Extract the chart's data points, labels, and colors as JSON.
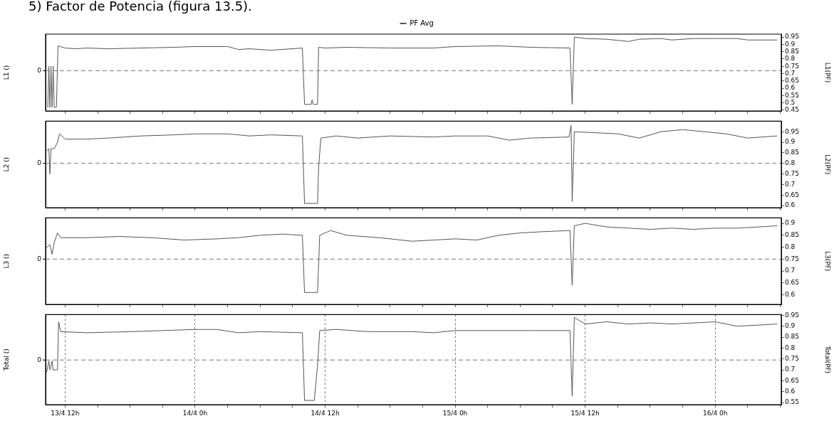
{
  "chart_data": [
    {
      "type": "line",
      "title": "5) Factor de Potencia (figura 13.5).",
      "ylabel": "L1 ()",
      "y2label": "L1(PF)",
      "ref_lines": [
        {
          "axis": "y2",
          "value": 0.72,
          "line_style": "dashed"
        }
      ],
      "annotations": [
        "0"
      ],
      "legend": "top",
      "grid": "x",
      "tick_labels": "y",
      "marker": "none",
      "line_style": "solid",
      "xlim": [
        "--04-13T10:12",
        "--04-16T06:06"
      ],
      "xticks": [
        {
          "value": "--04-13T12:00",
          "label": null
        },
        {
          "value": "--04-13T15:00",
          "label": null
        },
        {
          "value": "--04-13T18:00",
          "label": null
        },
        {
          "value": "--04-13T21:00",
          "label": null
        },
        {
          "value": "--04-14T00:00",
          "label": null
        },
        {
          "value": "--04-14T03:00",
          "label": null
        },
        {
          "value": "--04-14T06:00",
          "label": null
        },
        {
          "value": "--04-14T09:00",
          "label": null
        },
        {
          "value": "--04-14T12:00",
          "label": null
        },
        {
          "value": "--04-14T15:00",
          "label": null
        },
        {
          "value": "--04-14T18:00",
          "label": null
        },
        {
          "value": "--04-14T21:00",
          "label": null
        },
        {
          "value": "--04-15T00:00",
          "label": null
        },
        {
          "value": "--04-15T03:00",
          "label": null
        },
        {
          "value": "--04-15T06:00",
          "label": null
        },
        {
          "value": "--04-15T09:00",
          "label": null
        },
        {
          "value": "--04-15T12:00",
          "label": null
        },
        {
          "value": "--04-15T15:00",
          "label": null
        },
        {
          "value": "--04-15T18:00",
          "label": null
        },
        {
          "value": "--04-15T21:00",
          "label": null
        },
        {
          "value": "--04-16T00:00",
          "label": null
        },
        {
          "value": "--04-16T03:00",
          "label": null
        },
        {
          "value": "--04-16T06:00",
          "label": null
        }
      ],
      "y2lim": [
        0.445,
        0.97
      ],
      "y2ticks": [
        0.45,
        0.5,
        0.55,
        0.6,
        0.65,
        0.7,
        0.75,
        0.8,
        0.85,
        0.9,
        0.95
      ],
      "series": [
        {
          "name": "PF Avg",
          "color": "#555555",
          "axis": "y2",
          "x": [
            "--04-13T10:24",
            "--04-13T10:30",
            "--04-13T10:36",
            "--04-13T10:42",
            "--04-13T10:48",
            "--04-13T10:54",
            "--04-13T11:00",
            "--04-13T11:12",
            "--04-13T11:21",
            "--04-13T12:00",
            "--04-13T13:00",
            "--04-13T14:00",
            "--04-13T16:00",
            "--04-13T19:00",
            "--04-13T22:00",
            "--04-14T00:00",
            "--04-14T03:00",
            "--04-14T04:00",
            "--04-14T05:00",
            "--04-14T07:00",
            "--04-14T09:54",
            "--04-14T10:06",
            "--04-14T10:42",
            "--04-14T10:48",
            "--04-14T10:54",
            "--04-14T11:18",
            "--04-14T11:24",
            "--04-14T12:00",
            "--04-14T14:00",
            "--04-14T18:00",
            "--04-14T22:00",
            "--04-15T00:00",
            "--04-15T04:00",
            "--04-15T07:00",
            "--04-15T10:36",
            "--04-15T10:48",
            "--04-15T11:00",
            "--04-15T12:00",
            "--04-15T14:00",
            "--04-15T16:00",
            "--04-15T17:00",
            "--04-15T19:00",
            "--04-15T20:00",
            "--04-15T22:00",
            "--04-16T00:00",
            "--04-16T02:00",
            "--04-16T03:00",
            "--04-16T05:42"
          ],
          "values": [
            0.47,
            0.75,
            0.47,
            0.75,
            0.47,
            0.75,
            0.47,
            0.47,
            0.89,
            0.875,
            0.87,
            0.875,
            0.87,
            0.875,
            0.88,
            0.885,
            0.885,
            0.865,
            0.87,
            0.86,
            0.875,
            0.49,
            0.49,
            0.52,
            0.49,
            0.49,
            0.88,
            0.875,
            0.88,
            0.875,
            0.875,
            0.885,
            0.89,
            0.88,
            0.875,
            0.49,
            0.95,
            0.94,
            0.935,
            0.92,
            0.935,
            0.94,
            0.93,
            0.94,
            0.94,
            0.94,
            0.93,
            0.93
          ]
        }
      ]
    },
    {
      "type": "line",
      "ylabel": "L2 ()",
      "y2label": "L2(PF)",
      "ref_lines": [
        {
          "axis": "y2",
          "value": 0.8,
          "line_style": "dashed"
        }
      ],
      "annotations": [
        "0"
      ],
      "grid": "x",
      "tick_labels": "y",
      "marker": "none",
      "line_style": "solid",
      "xlim": [
        "--04-13T10:12",
        "--04-16T06:06"
      ],
      "xticks": [
        {
          "value": "--04-13T12:00",
          "label": null
        },
        {
          "value": "--04-13T15:00",
          "label": null
        },
        {
          "value": "--04-13T18:00",
          "label": null
        },
        {
          "value": "--04-13T21:00",
          "label": null
        },
        {
          "value": "--04-14T00:00",
          "label": null
        },
        {
          "value": "--04-14T03:00",
          "label": null
        },
        {
          "value": "--04-14T06:00",
          "label": null
        },
        {
          "value": "--04-14T09:00",
          "label": null
        },
        {
          "value": "--04-14T12:00",
          "label": null
        },
        {
          "value": "--04-14T15:00",
          "label": null
        },
        {
          "value": "--04-14T18:00",
          "label": null
        },
        {
          "value": "--04-14T21:00",
          "label": null
        },
        {
          "value": "--04-15T00:00",
          "label": null
        },
        {
          "value": "--04-15T03:00",
          "label": null
        },
        {
          "value": "--04-15T06:00",
          "label": null
        },
        {
          "value": "--04-15T09:00",
          "label": null
        },
        {
          "value": "--04-15T12:00",
          "label": null
        },
        {
          "value": "--04-15T15:00",
          "label": null
        },
        {
          "value": "--04-15T18:00",
          "label": null
        },
        {
          "value": "--04-15T21:00",
          "label": null
        },
        {
          "value": "--04-16T00:00",
          "label": null
        },
        {
          "value": "--04-16T03:00",
          "label": null
        },
        {
          "value": "--04-16T06:00",
          "label": null
        }
      ],
      "y2lim": [
        0.59,
        1.0
      ],
      "y2ticks": [
        0.6,
        0.65,
        0.7,
        0.75,
        0.8,
        0.85,
        0.9,
        0.95
      ],
      "series": [
        {
          "color": "#555555",
          "axis": "y2",
          "x": [
            "--04-13T10:18",
            "--04-13T10:30",
            "--04-13T10:36",
            "--04-13T10:42",
            "--04-13T11:00",
            "--04-13T11:18",
            "--04-13T11:30",
            "--04-13T12:00",
            "--04-13T14:00",
            "--04-13T16:00",
            "--04-13T19:00",
            "--04-13T22:00",
            "--04-14T00:00",
            "--04-14T03:00",
            "--04-14T05:00",
            "--04-14T07:00",
            "--04-14T09:54",
            "--04-14T10:06",
            "--04-14T11:18",
            "--04-14T11:24",
            "--04-14T11:36",
            "--04-14T13:00",
            "--04-14T15:00",
            "--04-14T18:00",
            "--04-14T22:00",
            "--04-15T00:00",
            "--04-15T03:00",
            "--04-15T05:00",
            "--04-15T07:00",
            "--04-15T10:30",
            "--04-15T10:42",
            "--04-15T10:48",
            "--04-15T11:00",
            "--04-15T13:00",
            "--04-15T15:00",
            "--04-15T17:00",
            "--04-15T19:00",
            "--04-15T21:00",
            "--04-15T23:00",
            "--04-16T01:00",
            "--04-16T03:00",
            "--04-16T05:42"
          ],
          "values": [
            0.86,
            0.87,
            0.75,
            0.87,
            0.87,
            0.9,
            0.94,
            0.915,
            0.915,
            0.92,
            0.93,
            0.935,
            0.94,
            0.94,
            0.93,
            0.935,
            0.93,
            0.61,
            0.61,
            0.78,
            0.92,
            0.93,
            0.92,
            0.93,
            0.925,
            0.93,
            0.93,
            0.91,
            0.92,
            0.925,
            0.98,
            0.62,
            0.95,
            0.945,
            0.94,
            0.92,
            0.95,
            0.96,
            0.95,
            0.94,
            0.92,
            0.93
          ]
        }
      ]
    },
    {
      "type": "line",
      "ylabel": "L3 ()",
      "y2label": "L3(PF)",
      "ref_lines": [
        {
          "axis": "y2",
          "value": 0.75,
          "line_style": "dashed"
        }
      ],
      "annotations": [
        "0"
      ],
      "grid": "x",
      "tick_labels": "y",
      "marker": "none",
      "line_style": "solid",
      "xlim": [
        "--04-13T10:12",
        "--04-16T06:06"
      ],
      "xticks": [
        {
          "value": "--04-13T12:00",
          "label": null
        },
        {
          "value": "--04-13T15:00",
          "label": null
        },
        {
          "value": "--04-13T18:00",
          "label": null
        },
        {
          "value": "--04-13T21:00",
          "label": null
        },
        {
          "value": "--04-14T00:00",
          "label": null
        },
        {
          "value": "--04-14T03:00",
          "label": null
        },
        {
          "value": "--04-14T06:00",
          "label": null
        },
        {
          "value": "--04-14T09:00",
          "label": null
        },
        {
          "value": "--04-14T12:00",
          "label": null
        },
        {
          "value": "--04-14T15:00",
          "label": null
        },
        {
          "value": "--04-14T18:00",
          "label": null
        },
        {
          "value": "--04-14T21:00",
          "label": null
        },
        {
          "value": "--04-15T00:00",
          "label": null
        },
        {
          "value": "--04-15T03:00",
          "label": null
        },
        {
          "value": "--04-15T06:00",
          "label": null
        },
        {
          "value": "--04-15T09:00",
          "label": null
        },
        {
          "value": "--04-15T12:00",
          "label": null
        },
        {
          "value": "--04-15T15:00",
          "label": null
        },
        {
          "value": "--04-15T18:00",
          "label": null
        },
        {
          "value": "--04-15T21:00",
          "label": null
        },
        {
          "value": "--04-16T00:00",
          "label": null
        },
        {
          "value": "--04-16T03:00",
          "label": null
        },
        {
          "value": "--04-16T06:00",
          "label": null
        }
      ],
      "y2lim": [
        0.56,
        0.923
      ],
      "y2ticks": [
        0.6,
        0.65,
        0.7,
        0.75,
        0.8,
        0.85,
        0.9
      ],
      "series": [
        {
          "color": "#555555",
          "axis": "y2",
          "x": [
            "--04-13T10:18",
            "--04-13T10:36",
            "--04-13T10:48",
            "--04-13T11:00",
            "--04-13T11:18",
            "--04-13T11:36",
            "--04-13T14:00",
            "--04-13T17:00",
            "--04-13T20:00",
            "--04-13T23:00",
            "--04-14T02:00",
            "--04-14T04:00",
            "--04-14T06:00",
            "--04-14T08:00",
            "--04-14T09:54",
            "--04-14T10:06",
            "--04-14T11:18",
            "--04-14T11:30",
            "--04-14T12:30",
            "--04-14T14:00",
            "--04-14T17:00",
            "--04-14T20:00",
            "--04-14T22:00",
            "--04-15T00:00",
            "--04-15T02:00",
            "--04-15T04:00",
            "--04-15T06:00",
            "--04-15T08:00",
            "--04-15T10:36",
            "--04-15T10:48",
            "--04-15T11:00",
            "--04-15T12:00",
            "--04-15T14:00",
            "--04-15T16:00",
            "--04-15T18:00",
            "--04-15T20:00",
            "--04-15T22:00",
            "--04-16T00:00",
            "--04-16T02:00",
            "--04-16T04:00",
            "--04-16T05:42"
          ],
          "values": [
            0.8,
            0.81,
            0.77,
            0.82,
            0.86,
            0.84,
            0.84,
            0.845,
            0.84,
            0.83,
            0.835,
            0.84,
            0.85,
            0.855,
            0.85,
            0.61,
            0.61,
            0.85,
            0.87,
            0.85,
            0.84,
            0.825,
            0.83,
            0.835,
            0.83,
            0.85,
            0.86,
            0.865,
            0.87,
            0.64,
            0.89,
            0.9,
            0.885,
            0.88,
            0.875,
            0.88,
            0.875,
            0.88,
            0.88,
            0.885,
            0.89
          ]
        }
      ]
    },
    {
      "type": "line",
      "ylabel": "Total ()",
      "y2label": "Total(PF)",
      "ref_lines": [
        {
          "axis": "y2",
          "value": 0.745,
          "line_style": "dashed"
        }
      ],
      "annotations": [
        "0"
      ],
      "grid": "x",
      "marker": "none",
      "line_style": "solid",
      "xlim": [
        "--04-13T10:12",
        "--04-16T06:06"
      ],
      "xticks": [
        {
          "value": "--04-13T12:00",
          "label": "13/4 12h"
        },
        {
          "value": "--04-13T15:00",
          "label": null
        },
        {
          "value": "--04-13T18:00",
          "label": null
        },
        {
          "value": "--04-13T21:00",
          "label": null
        },
        {
          "value": "--04-14T00:00",
          "label": "14/4 0h"
        },
        {
          "value": "--04-14T03:00",
          "label": null
        },
        {
          "value": "--04-14T06:00",
          "label": null
        },
        {
          "value": "--04-14T09:00",
          "label": null
        },
        {
          "value": "--04-14T12:00",
          "label": "14/4 12h"
        },
        {
          "value": "--04-14T15:00",
          "label": null
        },
        {
          "value": "--04-14T18:00",
          "label": null
        },
        {
          "value": "--04-14T21:00",
          "label": null
        },
        {
          "value": "--04-15T00:00",
          "label": "15/4 0h"
        },
        {
          "value": "--04-15T03:00",
          "label": null
        },
        {
          "value": "--04-15T06:00",
          "label": null
        },
        {
          "value": "--04-15T09:00",
          "label": null
        },
        {
          "value": "--04-15T12:00",
          "label": "15/4 12h"
        },
        {
          "value": "--04-15T15:00",
          "label": null
        },
        {
          "value": "--04-15T18:00",
          "label": null
        },
        {
          "value": "--04-15T21:00",
          "label": null
        },
        {
          "value": "--04-16T00:00",
          "label": "16/4 0h"
        },
        {
          "value": "--04-16T03:00",
          "label": null
        },
        {
          "value": "--04-16T06:00",
          "label": null
        }
      ],
      "y2lim": [
        0.54,
        0.953
      ],
      "y2ticks": [
        0.55,
        0.6,
        0.65,
        0.7,
        0.75,
        0.8,
        0.85,
        0.9,
        0.95
      ],
      "series": [
        {
          "color": "#555555",
          "axis": "y2",
          "x": [
            "--04-13T10:18",
            "--04-13T10:30",
            "--04-13T10:36",
            "--04-13T10:48",
            "--04-13T10:54",
            "--04-13T11:18",
            "--04-13T11:24",
            "--04-13T11:36",
            "--04-13T14:00",
            "--04-13T18:00",
            "--04-13T21:00",
            "--04-14T00:00",
            "--04-14T02:00",
            "--04-14T04:00",
            "--04-14T06:00",
            "--04-14T09:54",
            "--04-14T10:06",
            "--04-14T11:00",
            "--04-14T11:18",
            "--04-14T11:30",
            "--04-14T13:00",
            "--04-14T16:00",
            "--04-14T20:00",
            "--04-14T22:00",
            "--04-15T00:00",
            "--04-15T04:00",
            "--04-15T07:00",
            "--04-15T10:36",
            "--04-15T10:48",
            "--04-15T11:00",
            "--04-15T12:00",
            "--04-15T14:00",
            "--04-15T16:00",
            "--04-15T18:00",
            "--04-15T20:00",
            "--04-15T22:00",
            "--04-16T00:00",
            "--04-16T02:00",
            "--04-16T04:00",
            "--04-16T05:42"
          ],
          "values": [
            0.69,
            0.74,
            0.7,
            0.74,
            0.7,
            0.7,
            0.92,
            0.875,
            0.87,
            0.875,
            0.88,
            0.885,
            0.885,
            0.87,
            0.875,
            0.87,
            0.56,
            0.56,
            0.72,
            0.88,
            0.885,
            0.875,
            0.875,
            0.87,
            0.88,
            0.88,
            0.88,
            0.88,
            0.58,
            0.94,
            0.91,
            0.92,
            0.91,
            0.915,
            0.91,
            0.915,
            0.92,
            0.9,
            0.905,
            0.91
          ]
        }
      ]
    }
  ]
}
